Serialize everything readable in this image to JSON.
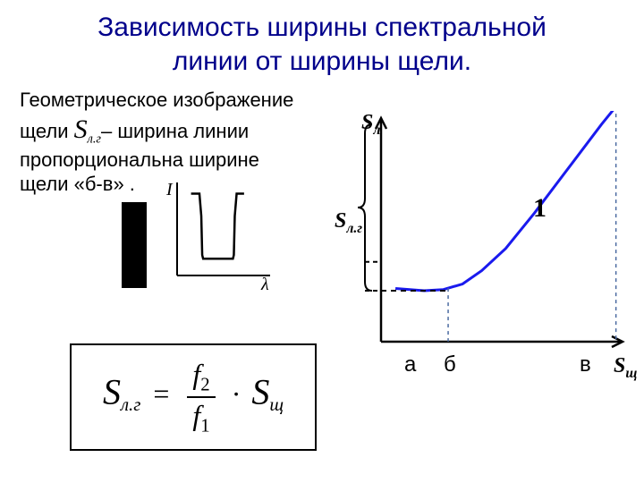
{
  "title": {
    "line1": "Зависимость ширины спектральной",
    "line2": "линии  от  ширины  щели.",
    "color": "#00008b",
    "fontsize": 30
  },
  "paragraph": {
    "line1": "Геометрическое изображение",
    "line2_pre": "щели ",
    "line2_sym": "S",
    "line2_sub": "л.г",
    "line2_post": "– ширина линии",
    "line3": "пропорциональна ширине",
    "line4": "щели  «б-в» ."
  },
  "slit": {
    "color": "#000000",
    "width": 28,
    "height": 96
  },
  "intensity_plot": {
    "ylabel": "I",
    "xlabel": "λ",
    "axis_color": "#000000",
    "line_color": "#000000",
    "points": [
      [
        15,
        88
      ],
      [
        24,
        88
      ],
      [
        26,
        64
      ],
      [
        27,
        22
      ],
      [
        28,
        18
      ],
      [
        60,
        18
      ],
      [
        61,
        22
      ],
      [
        62,
        64
      ],
      [
        64,
        88
      ],
      [
        72,
        88
      ]
    ],
    "ymin": 0,
    "ymax": 100,
    "xmin": 0,
    "xmax": 100
  },
  "formula": {
    "lhs_sym": "S",
    "lhs_sub": "л.г",
    "num_sym": "f",
    "num_sub": "2",
    "den_sym": "f",
    "den_sub": "1",
    "rhs_sym": "S",
    "rhs_sub": "щ",
    "border_color": "#000000"
  },
  "main_chart": {
    "type": "line",
    "background": "#ffffff",
    "axis_color": "#000000",
    "curve_color": "#1a1aee",
    "curve_width": 3,
    "dash_color": "#4a6aa0",
    "ylabel_top": "Sл",
    "ylabel_mid": "Sл.г",
    "xlabel_right": "Sщ",
    "curve_label": "1",
    "xlim": [
      0,
      100
    ],
    "ylim": [
      0,
      100
    ],
    "points": [
      [
        6,
        24
      ],
      [
        18,
        23
      ],
      [
        26,
        23.5
      ],
      [
        34,
        26
      ],
      [
        42,
        32
      ],
      [
        52,
        42
      ],
      [
        64,
        58
      ],
      [
        78,
        78
      ],
      [
        92,
        98
      ],
      [
        98,
        106
      ]
    ],
    "ytick_dash_positions": [
      23,
      36
    ],
    "xtick_dash_positions": [
      28,
      98
    ],
    "xtick_labels": [
      {
        "label": "а",
        "x": 14
      },
      {
        "label": "б",
        "x": 30
      },
      {
        "label": "в",
        "x": 94
      }
    ],
    "brace_from_y": 23,
    "brace_to_y": 98
  }
}
